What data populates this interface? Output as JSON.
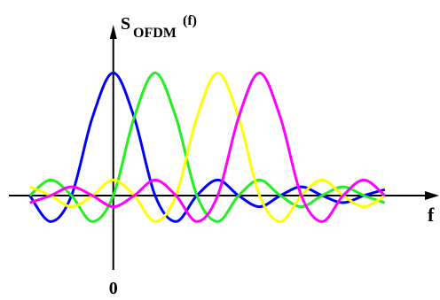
{
  "chart_data": {
    "type": "line",
    "ylabel": "S",
    "ylabel_sub": "OFDM",
    "ylabel_sup": "(f)",
    "xlabel": "f",
    "x": [
      -2,
      -1.5,
      -1,
      -0.5,
      0,
      0.5,
      1,
      1.5,
      2,
      2.5,
      3,
      3.5,
      4,
      4.5,
      5,
      5.5,
      6,
      6.5
    ],
    "xlim": [
      -2.5,
      7.8
    ],
    "ylim": [
      -0.57,
      1.45
    ],
    "xticks": [
      0
    ],
    "series": [
      {
        "color": "#0000ff",
        "values": [
          0,
          -0.212,
          0,
          0.637,
          1,
          0.637,
          0,
          -0.212,
          0,
          0.127,
          0,
          -0.091,
          0,
          0.071,
          0,
          -0.058,
          0,
          0.049
        ]
      },
      {
        "color": "#22ee22",
        "values": [
          0,
          0.127,
          0,
          -0.212,
          0,
          0.637,
          1,
          0.637,
          0,
          -0.212,
          0,
          0.127,
          0,
          -0.091,
          0,
          0.071,
          0,
          -0.058
        ]
      },
      {
        "color": "#ffff00",
        "values": [
          0.071,
          0,
          -0.091,
          0,
          0.127,
          0,
          -0.212,
          0,
          0.637,
          1,
          0.637,
          0,
          -0.212,
          0,
          0.127,
          0,
          -0.091,
          0
        ]
      },
      {
        "color": "#ff00ff",
        "values": [
          -0.058,
          0,
          0.071,
          0,
          -0.091,
          0,
          0.127,
          0,
          -0.212,
          0,
          0.637,
          1,
          0.637,
          0,
          -0.212,
          0,
          0.127,
          0
        ]
      }
    ]
  }
}
